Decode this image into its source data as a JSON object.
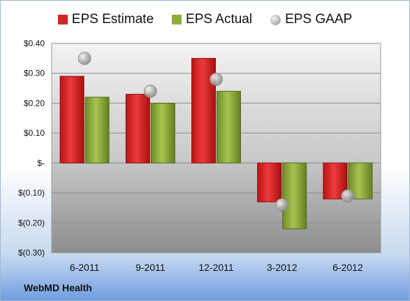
{
  "chart_data": {
    "type": "bar",
    "categories": [
      "6-2011",
      "9-2011",
      "12-2011",
      "3-2012",
      "6-2012"
    ],
    "series": [
      {
        "name": "EPS Estimate",
        "kind": "bar",
        "color": "#d42424",
        "values": [
          0.29,
          0.23,
          0.35,
          -0.13,
          -0.12
        ]
      },
      {
        "name": "EPS Actual",
        "kind": "bar",
        "color": "#8fae3a",
        "values": [
          0.22,
          0.2,
          0.24,
          -0.22,
          -0.12
        ]
      },
      {
        "name": "EPS GAAP",
        "kind": "marker",
        "color": "#b0b0b0",
        "values": [
          0.35,
          0.24,
          0.28,
          -0.14,
          -0.11
        ]
      }
    ],
    "ylim": [
      -0.3,
      0.4
    ],
    "yticks": [
      0.4,
      0.3,
      0.2,
      0.1,
      0,
      -0.1,
      -0.2,
      -0.3
    ],
    "ytick_labels": [
      "$0.40",
      "$0.30",
      "$0.20",
      "$0.10",
      "$-",
      "$(0.10)",
      "$(0.20)",
      "$(0.30)"
    ],
    "grid": true,
    "legend_position": "top"
  },
  "company": "WebMD Health"
}
